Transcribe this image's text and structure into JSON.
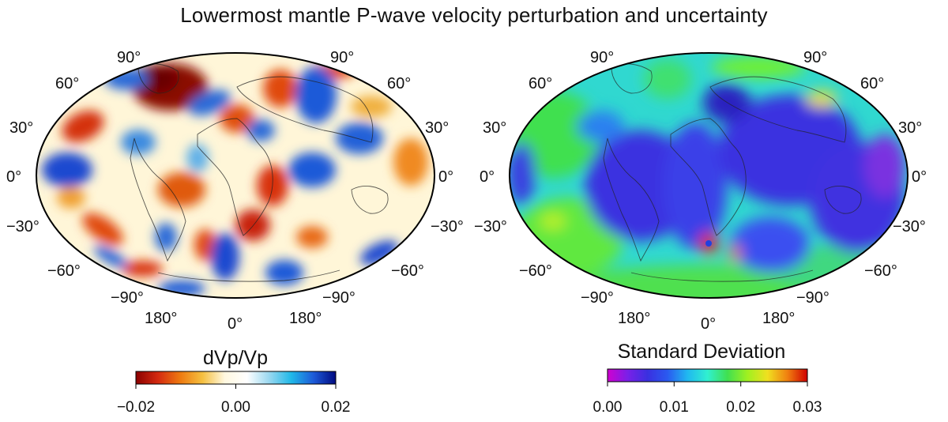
{
  "title": "Lowermost mantle P-wave velocity perturbation and uncertainty",
  "maps": [
    {
      "id": "velocity",
      "lat_labels_left": [
        "90°",
        "60°",
        "30°",
        "0°",
        "−30°",
        "−60°",
        "−90°"
      ],
      "lat_labels_right": [
        "90°",
        "60°",
        "30°",
        "0°",
        "−30°",
        "−60°",
        "−90°"
      ],
      "lon_labels": [
        "180°",
        "0°",
        "180°"
      ],
      "colorbar": {
        "title": "dVp/Vp",
        "ticks": [
          "−0.02",
          "0.00",
          "0.02"
        ],
        "range": [
          -0.02,
          0.02
        ],
        "colors": [
          "#8b0000",
          "#d42a10",
          "#ee7a10",
          "#f5c040",
          "#fff8e0",
          "#ffffff",
          "#9ad8f0",
          "#20b8e8",
          "#1d5ad8",
          "#000a80"
        ]
      }
    },
    {
      "id": "uncertainty",
      "lat_labels_left": [
        "90°",
        "60°",
        "30°",
        "0°",
        "−30°",
        "−60°",
        "−90°"
      ],
      "lat_labels_right": [
        "90°",
        "60°",
        "30°",
        "0°",
        "−30°",
        "−60°",
        "−90°"
      ],
      "lon_labels": [
        "180°",
        "0°",
        "180°"
      ],
      "colorbar": {
        "title": "Standard Deviation",
        "ticks": [
          "0.00",
          "0.01",
          "0.02",
          "0.03"
        ],
        "range": [
          0.0,
          0.03
        ],
        "colors": [
          "#d000d0",
          "#7a20e8",
          "#3a30e0",
          "#2a5af0",
          "#20b8f0",
          "#30f0d0",
          "#40e050",
          "#a0f020",
          "#f0e020",
          "#f08010",
          "#d00000"
        ]
      }
    }
  ],
  "colors": {
    "background": "#ffffff",
    "coastline": "#222222",
    "frame": "#000000"
  }
}
